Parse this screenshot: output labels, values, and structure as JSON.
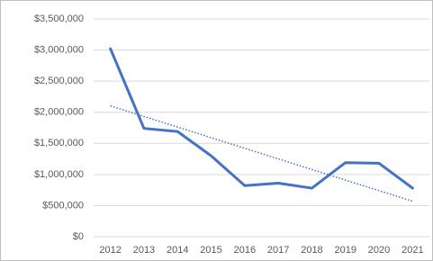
{
  "chart_data": {
    "type": "line",
    "categories": [
      "2012",
      "2013",
      "2014",
      "2015",
      "2016",
      "2017",
      "2018",
      "2019",
      "2020",
      "2021"
    ],
    "series": [
      {
        "color": "#4472c4",
        "values": [
          3020000,
          1740000,
          1690000,
          1300000,
          820000,
          860000,
          780000,
          1190000,
          1180000,
          780000
        ]
      }
    ],
    "ylim": [
      0,
      3500000
    ],
    "yticks": [
      {
        "value": 0,
        "label": "$0"
      },
      {
        "value": 500000,
        "label": "$500,000"
      },
      {
        "value": 1000000,
        "label": "$1,000,000"
      },
      {
        "value": 1500000,
        "label": "$1,500,000"
      },
      {
        "value": 2000000,
        "label": "$2,000,000"
      },
      {
        "value": 2500000,
        "label": "$2,500,000"
      },
      {
        "value": 3000000,
        "label": "$3,000,000"
      },
      {
        "value": 3500000,
        "label": "$3,500,000"
      }
    ],
    "grid": true,
    "trendline": "linear"
  }
}
